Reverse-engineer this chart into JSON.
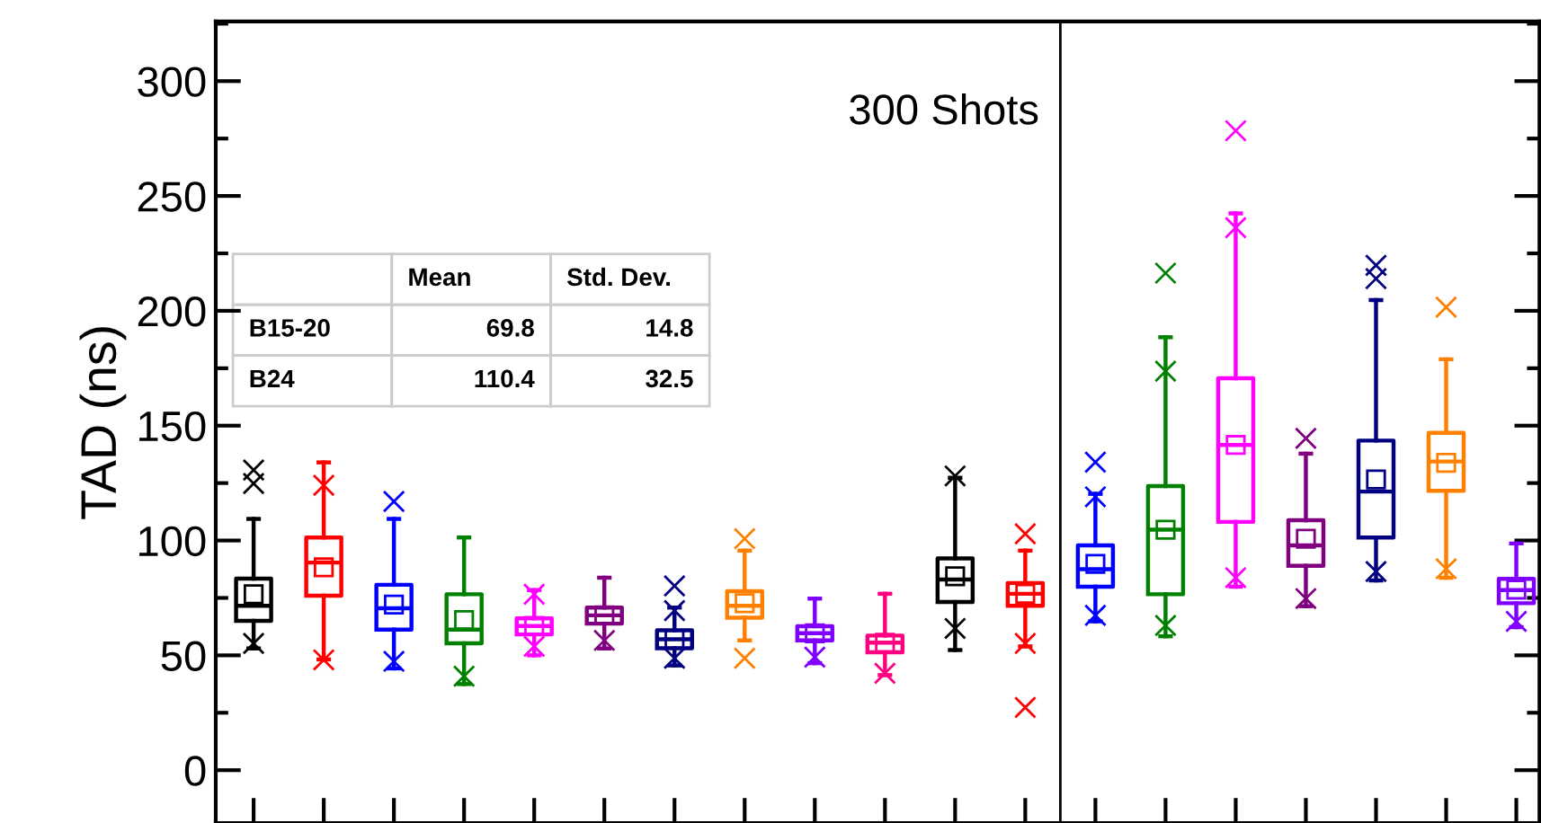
{
  "chart_data": {
    "type": "box",
    "title": "300 Shots",
    "ylabel": "TAD (ns)",
    "categories": [
      null,
      null,
      null,
      null,
      null,
      null,
      null,
      null,
      null,
      null,
      null,
      null,
      null,
      null,
      null,
      null,
      null,
      null,
      null
    ],
    "colors": [
      "#000000",
      "#ff0000",
      "#0000ff",
      "#008000",
      "#ff00ff",
      "#800080",
      "#000080",
      "#ff8000",
      "#8000ff",
      "#ff0080",
      "#000000",
      "#ff0000",
      "#0000ff",
      "#008000",
      "#ff00ff",
      "#800080",
      "#000080",
      "#ff8000",
      "#8000ff"
    ],
    "boxes": [
      {
        "low": 53,
        "q1": 65,
        "median": 71.6,
        "q3": 83.4,
        "high": 109.4,
        "mean": 76.6,
        "outliers": [
          124.8,
          130.7,
          55.2
        ]
      },
      {
        "low": 48.2,
        "q1": 76,
        "median": 90.4,
        "q3": 101.3,
        "high": 134,
        "mean": 88.3,
        "outliers": [
          124,
          48
        ]
      },
      {
        "low": 44.3,
        "q1": 61.2,
        "median": 70.5,
        "q3": 80.7,
        "high": 109.4,
        "mean": 72.1,
        "outliers": [
          117,
          47.4
        ]
      },
      {
        "low": 37.5,
        "q1": 55.2,
        "median": 61.2,
        "q3": 76.6,
        "high": 101.3,
        "mean": 65.4,
        "outliers": [
          40.9
        ]
      },
      {
        "low": 50,
        "q1": 59.1,
        "median": 62.8,
        "q3": 66.1,
        "high": 78.4,
        "mean": 62.8,
        "outliers": [
          76.6,
          53.9
        ]
      },
      {
        "low": 53,
        "q1": 63.8,
        "median": 67.4,
        "q3": 70.8,
        "high": 83.8,
        "mean": 67.4,
        "outliers": [
          56.5
        ]
      },
      {
        "low": 45.6,
        "q1": 53.1,
        "median": 57,
        "q3": 60.9,
        "high": 70.8,
        "mean": 57,
        "outliers": [
          69.5,
          80.2,
          48.7
        ]
      },
      {
        "low": 56.5,
        "q1": 66.4,
        "median": 71.6,
        "q3": 77.9,
        "high": 95.6,
        "mean": 72.7,
        "outliers": [
          100.8,
          48.7
        ]
      },
      {
        "low": 46.6,
        "q1": 56.5,
        "median": 59.6,
        "q3": 62.7,
        "high": 74.7,
        "mean": 59.6,
        "outliers": [
          49.2
        ]
      },
      {
        "low": 41.4,
        "q1": 51.3,
        "median": 55.5,
        "q3": 58.6,
        "high": 76.8,
        "mean": 55.5,
        "outliers": [
          42.2
        ]
      },
      {
        "low": 52.3,
        "q1": 73.2,
        "median": 83,
        "q3": 92.2,
        "high": 127.3,
        "mean": 84.4,
        "outliers": [
          128.1,
          61.7
        ]
      },
      {
        "low": 53.9,
        "q1": 71.6,
        "median": 76.8,
        "q3": 81.5,
        "high": 95.6,
        "mean": 76.8,
        "outliers": [
          102.9,
          55.2,
          27.3
        ]
      },
      {
        "low": 64.8,
        "q1": 79.9,
        "median": 87.5,
        "q3": 97.9,
        "high": 120.3,
        "mean": 89.8,
        "outliers": [
          119,
          134.1,
          67.4
        ]
      },
      {
        "low": 58.3,
        "q1": 76.6,
        "median": 104.7,
        "q3": 123.7,
        "high": 188.5,
        "mean": 104.7,
        "outliers": [
          173.7,
          216.4,
          63
        ]
      },
      {
        "low": 79.9,
        "q1": 108.1,
        "median": 141.6,
        "q3": 170.6,
        "high": 242.4,
        "mean": 141.6,
        "outliers": [
          236.2,
          278.4,
          83.8
        ]
      },
      {
        "low": 71.4,
        "q1": 89,
        "median": 97.9,
        "q3": 108.8,
        "high": 137.8,
        "mean": 100.8,
        "outliers": [
          144.5,
          74.7
        ]
      },
      {
        "low": 82.6,
        "q1": 101.3,
        "median": 121.3,
        "q3": 143.5,
        "high": 204.7,
        "mean": 126.6,
        "outliers": [
          214,
          219.8,
          86.5
        ]
      },
      {
        "low": 83.8,
        "q1": 121.6,
        "median": 134.4,
        "q3": 146.9,
        "high": 178.9,
        "mean": 133.8,
        "outliers": [
          201.6,
          87.7
        ]
      },
      {
        "low": 62.3,
        "q1": 72.7,
        "median": 78.4,
        "q3": 83.3,
        "high": 98.7,
        "mean": 78.6,
        "outliers": [
          64.8
        ]
      }
    ],
    "ylim": [
      -23,
      326
    ],
    "yticks": [
      0,
      50,
      100,
      150,
      200,
      250,
      300
    ],
    "annotations": [
      "Mean",
      "Std. Dev.",
      "B15-20",
      "69.8",
      "14.8",
      "B24",
      "110.4",
      "32.5"
    ],
    "tick_labels": "y",
    "grid": false,
    "legend": false,
    "marker": "square"
  }
}
